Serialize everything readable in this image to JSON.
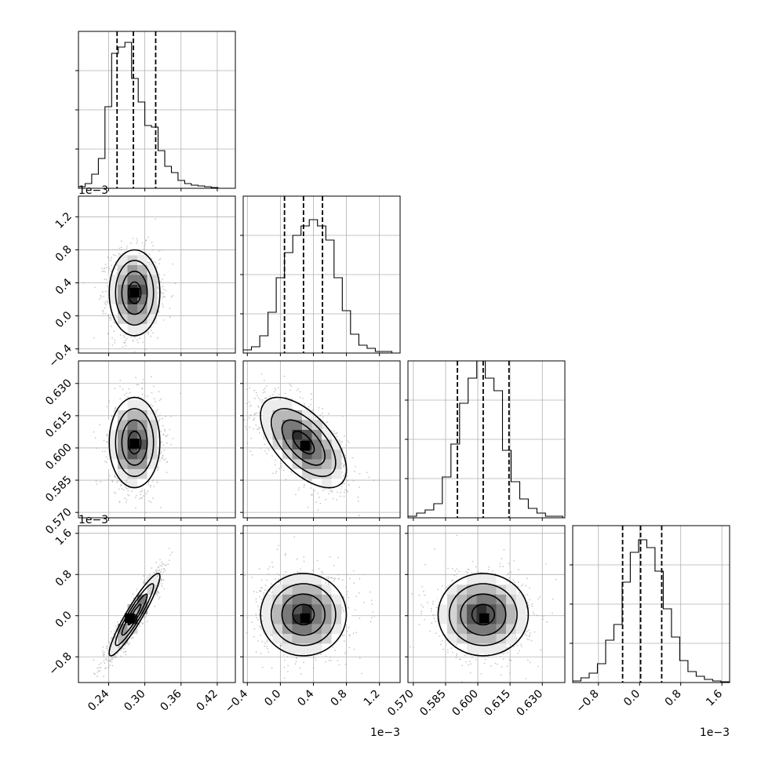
{
  "chart_data": {
    "type": "corner",
    "n_params": 4,
    "style": {
      "line_color": "#000000",
      "scatter_color": "#b0b0b0",
      "grid_color": "#b0b0b0",
      "density_levels": [
        "#ffffff",
        "#ececec",
        "#d4d4d4",
        "#b8b8b8",
        "#9a9a9a",
        "#7a7a7a",
        "#555555",
        "#2e2e2e",
        "#000000"
      ]
    },
    "grid": true,
    "axes": [
      {
        "range": [
          0.19,
          0.45
        ],
        "ticks": [
          "0.24",
          "0.30",
          "0.36",
          "0.42"
        ],
        "tick_values": [
          0.24,
          0.3,
          0.36,
          0.42
        ],
        "offset_label": ""
      },
      {
        "range": [
          -0.45,
          1.45
        ],
        "ticks": [
          "−0.4",
          "0.0",
          "0.4",
          "0.8",
          "1.2"
        ],
        "tick_values": [
          -0.4,
          0.0,
          0.4,
          0.8,
          1.2
        ],
        "offset_label": "1e−3"
      },
      {
        "range": [
          0.5675,
          0.6405
        ],
        "ticks": [
          "0.570",
          "0.585",
          "0.600",
          "0.615",
          "0.630"
        ],
        "tick_values": [
          0.57,
          0.585,
          0.6,
          0.615,
          0.63
        ],
        "offset_label": ""
      },
      {
        "range": [
          -1.3,
          1.75
        ],
        "ticks": [
          "−0.8",
          "0.0",
          "0.8",
          "1.6"
        ],
        "tick_values": [
          -0.8,
          0.0,
          0.8,
          1.6
        ],
        "offset_label": "1e−3"
      }
    ],
    "hist_ticks": [
      [
        0.25,
        0.5,
        0.75
      ],
      [
        0.25,
        0.5,
        0.75
      ],
      [
        0.25,
        0.5,
        0.75
      ],
      [
        0.25,
        0.5,
        0.75
      ]
    ],
    "histograms": [
      {
        "bins": [
          0.19,
          0.201,
          0.212,
          0.223,
          0.234,
          0.245,
          0.256,
          0.267,
          0.278,
          0.289,
          0.3,
          0.311,
          0.322,
          0.333,
          0.344,
          0.355,
          0.366,
          0.377,
          0.388,
          0.399,
          0.41,
          0.421
        ],
        "counts": [
          0.01,
          0.03,
          0.09,
          0.19,
          0.52,
          0.86,
          0.9,
          0.93,
          0.7,
          0.55,
          0.4,
          0.39,
          0.24,
          0.14,
          0.1,
          0.05,
          0.03,
          0.02,
          0.015,
          0.01,
          0.005
        ],
        "quantiles": [
          0.254,
          0.281,
          0.318
        ]
      },
      {
        "bins": [
          -0.45,
          -0.35,
          -0.25,
          -0.15,
          -0.05,
          0.05,
          0.15,
          0.25,
          0.35,
          0.45,
          0.55,
          0.65,
          0.75,
          0.85,
          0.95,
          1.05,
          1.15,
          1.25,
          1.35
        ],
        "counts": [
          0.02,
          0.04,
          0.11,
          0.26,
          0.48,
          0.64,
          0.75,
          0.81,
          0.85,
          0.81,
          0.72,
          0.48,
          0.27,
          0.12,
          0.05,
          0.03,
          0.01,
          0.01
        ],
        "quantiles": [
          0.05,
          0.28,
          0.51
        ]
      },
      {
        "bins": [
          0.5675,
          0.5715,
          0.5755,
          0.5795,
          0.5835,
          0.5875,
          0.5915,
          0.5955,
          0.5995,
          0.6035,
          0.6075,
          0.6115,
          0.6155,
          0.6195,
          0.6235,
          0.6275,
          0.6315,
          0.6355,
          0.6395
        ],
        "counts": [
          0.01,
          0.03,
          0.05,
          0.09,
          0.26,
          0.47,
          0.73,
          0.89,
          1.0,
          0.89,
          0.81,
          0.43,
          0.23,
          0.12,
          0.06,
          0.03,
          0.01,
          0.01
        ],
        "quantiles": [
          0.5905,
          0.6025,
          0.6145
        ]
      },
      {
        "bins": [
          -1.3,
          -1.14,
          -0.98,
          -0.82,
          -0.66,
          -0.5,
          -0.34,
          -0.18,
          -0.02,
          0.14,
          0.3,
          0.46,
          0.62,
          0.78,
          0.94,
          1.1,
          1.26,
          1.42,
          1.58,
          1.74
        ],
        "counts": [
          0.01,
          0.03,
          0.06,
          0.12,
          0.27,
          0.37,
          0.64,
          0.83,
          0.91,
          0.86,
          0.71,
          0.47,
          0.29,
          0.14,
          0.07,
          0.04,
          0.02,
          0.01,
          0.005
        ],
        "quantiles": [
          -0.33,
          0.02,
          0.43
        ]
      }
    ],
    "pairs": [
      {
        "row": 1,
        "col": 0,
        "mean": [
          0.283,
          0.28
        ],
        "std": [
          0.021,
          0.26
        ],
        "corr": 0.0,
        "peak": [
          0.283,
          0.28
        ]
      },
      {
        "row": 2,
        "col": 0,
        "mean": [
          0.283,
          0.6025
        ],
        "std": [
          0.021,
          0.0105
        ],
        "corr": 0.0,
        "peak": [
          0.283,
          0.602
        ]
      },
      {
        "row": 2,
        "col": 1,
        "mean": [
          0.28,
          0.6025
        ],
        "std": [
          0.26,
          0.0105
        ],
        "corr": -0.6,
        "peak": [
          0.3,
          0.601
        ]
      },
      {
        "row": 3,
        "col": 0,
        "mean": [
          0.283,
          0.02
        ],
        "std": [
          0.021,
          0.4
        ],
        "corr": 0.93,
        "peak": [
          0.275,
          -0.05
        ]
      },
      {
        "row": 3,
        "col": 1,
        "mean": [
          0.28,
          0.02
        ],
        "std": [
          0.26,
          0.4
        ],
        "corr": 0.0,
        "peak": [
          0.3,
          -0.05
        ]
      },
      {
        "row": 3,
        "col": 2,
        "mean": [
          0.6025,
          0.02
        ],
        "std": [
          0.0105,
          0.4
        ],
        "corr": 0.0,
        "peak": [
          0.603,
          -0.05
        ]
      }
    ],
    "contour_sigmas": [
      0.5,
      1.0,
      1.5,
      2.0
    ]
  }
}
